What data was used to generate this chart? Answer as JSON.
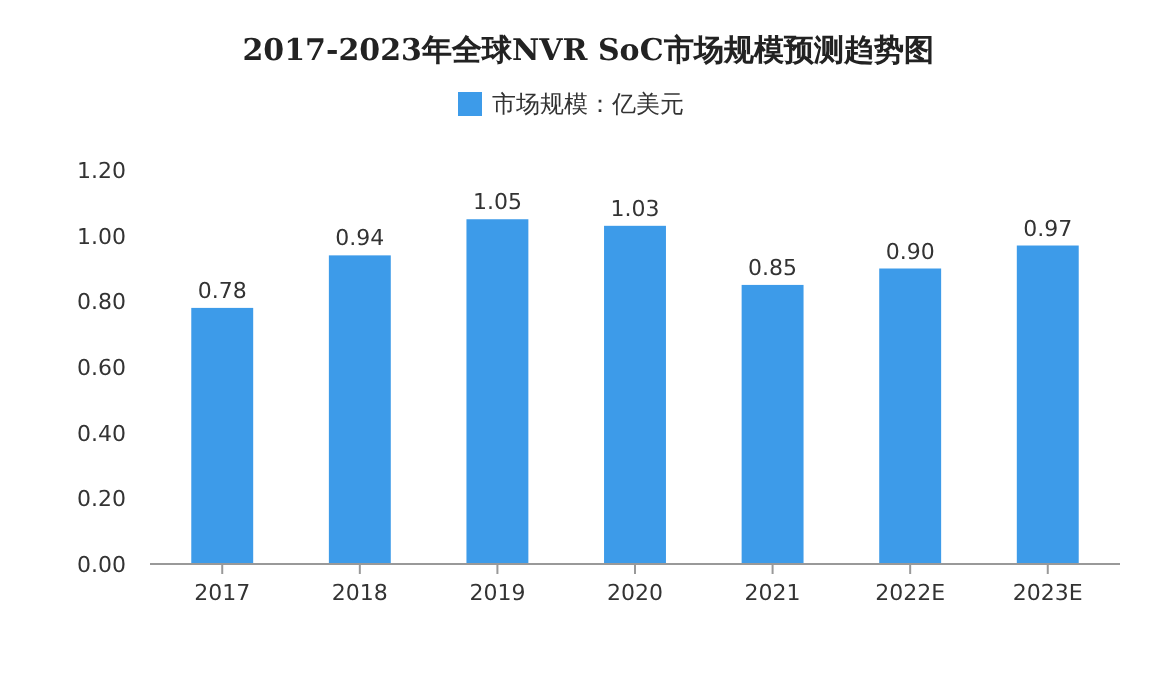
{
  "chart_data": {
    "type": "bar",
    "title": "2017-2023年全球NVR SoC市场规模预测趋势图",
    "categories": [
      "2017",
      "2018",
      "2019",
      "2020",
      "2021",
      "2022E",
      "2023E"
    ],
    "series": [
      {
        "name": "市场规模：亿美元",
        "color": "#3d9be9",
        "values": [
          0.78,
          0.94,
          1.05,
          1.03,
          0.85,
          0.9,
          0.97
        ],
        "value_labels": [
          "0.78",
          "0.94",
          "1.05",
          "1.03",
          "0.85",
          "0.90",
          "0.97"
        ]
      }
    ],
    "ylim": [
      0,
      1.2
    ],
    "yticks": [
      {
        "value": 0,
        "label": "0.00"
      },
      {
        "value": 0.2,
        "label": "0.20"
      },
      {
        "value": 0.4,
        "label": "0.40"
      },
      {
        "value": 0.6,
        "label": "0.60"
      },
      {
        "value": 0.8,
        "label": "0.80"
      },
      {
        "value": 1,
        "label": "1.00"
      },
      {
        "value": 1.2,
        "label": "1.20"
      }
    ],
    "legend": "top",
    "grid": false
  }
}
